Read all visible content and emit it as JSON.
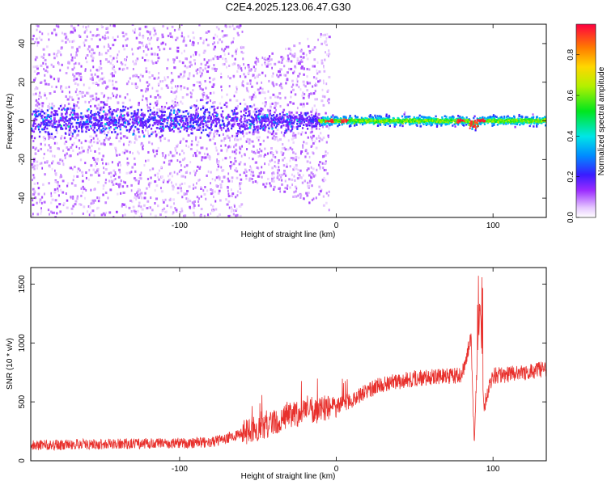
{
  "title": "C2E4.2025.123.06.47.G30",
  "chart_data": [
    {
      "type": "heatmap",
      "xlabel": "Height of straight line (km)",
      "ylabel": "Frequency (Hz)",
      "xlim": [
        -195,
        134
      ],
      "ylim": [
        -50,
        50
      ],
      "xticks": [
        -100,
        0,
        100
      ],
      "yticks": [
        -40,
        -20,
        0,
        20,
        40
      ],
      "colorbar": {
        "label": "Normalized spectral amplitude",
        "range": [
          0,
          0.95
        ],
        "ticks": [
          0.0,
          0.2,
          0.4,
          0.6,
          0.8
        ]
      },
      "features": {
        "signal_center_frequency_hz": 0,
        "scatter_noise_extends_to_km": -15,
        "strong_peaks_km": [
          -5,
          5,
          79,
          87,
          92
        ]
      }
    },
    {
      "type": "line",
      "xlabel": "Height of straight line (km)",
      "ylabel": "SNR (10 * v/v)",
      "xlim": [
        -195,
        134
      ],
      "ylim": [
        0,
        1640
      ],
      "xticks": [
        -100,
        0,
        100
      ],
      "yticks": [
        0,
        500,
        1000,
        1500
      ],
      "color": "#e8302c",
      "series": [
        {
          "x": [
            -195,
            -160,
            -120,
            -100,
            -80,
            -60,
            -45,
            -30,
            -15,
            0,
            10,
            20,
            30,
            50,
            70,
            80,
            86,
            88,
            90,
            92,
            94,
            100,
            115,
            134
          ],
          "y": [
            130,
            140,
            145,
            150,
            155,
            230,
            300,
            380,
            420,
            460,
            520,
            600,
            650,
            700,
            720,
            720,
            1050,
            150,
            880,
            1300,
            450,
            720,
            740,
            780
          ]
        }
      ]
    }
  ]
}
